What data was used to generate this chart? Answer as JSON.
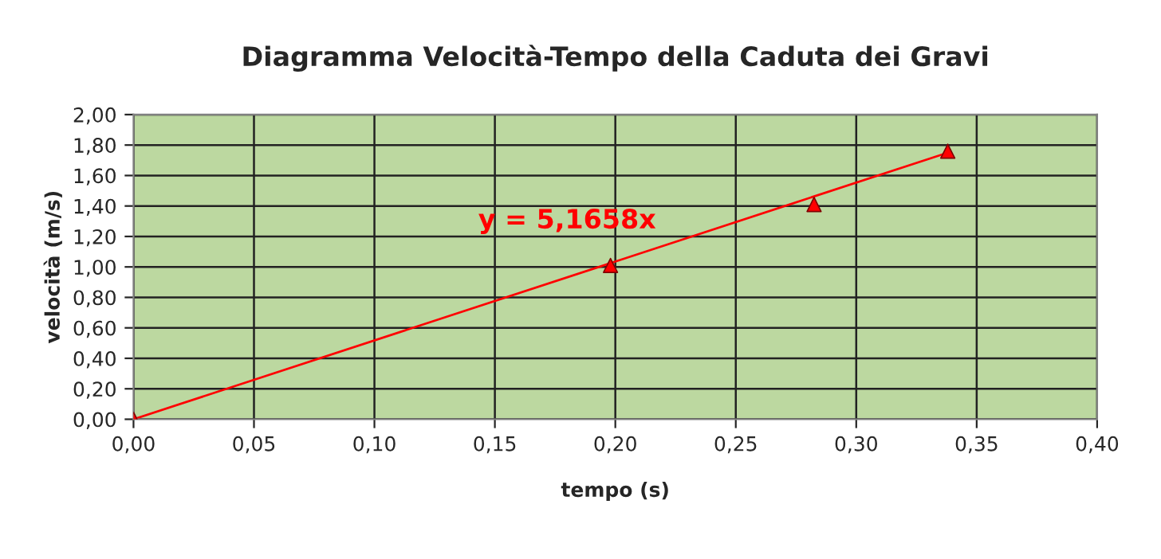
{
  "chart_data": {
    "type": "scatter",
    "title": "Diagramma Velocità-Tempo della Caduta dei Gravi",
    "xlabel": "tempo (s)",
    "ylabel": "velocità (m/s)",
    "series": [
      {
        "color": "#ff0000",
        "marker": "triangle",
        "x": [
          0.0,
          0.198,
          0.2825,
          0.338
        ],
        "values": [
          0.0,
          1.01,
          1.41,
          1.76
        ]
      },
      {
        "type": "line",
        "color": "#ff0000",
        "marker": "none",
        "x": [
          0.0,
          0.338
        ],
        "values": [
          0.0,
          1.75
        ]
      }
    ],
    "annotations": [
      "y = 5,1658x"
    ],
    "xlim": [
      0,
      0.4
    ],
    "xticks": [
      {
        "value": 0,
        "label": "0,00"
      },
      {
        "value": 0.05,
        "label": "0,05"
      },
      {
        "value": 0.1,
        "label": "0,10"
      },
      {
        "value": 0.15,
        "label": "0,15"
      },
      {
        "value": 0.2,
        "label": "0,20"
      },
      {
        "value": 0.25,
        "label": "0,25"
      },
      {
        "value": 0.3,
        "label": "0,30"
      },
      {
        "value": 0.35,
        "label": "0,35"
      },
      {
        "value": 0.4,
        "label": "0,40"
      }
    ],
    "ylim": [
      0,
      2
    ],
    "yticks": [
      {
        "value": 0,
        "label": "0,00"
      },
      {
        "value": 0.2,
        "label": "0,20"
      },
      {
        "value": 0.4,
        "label": "0,40"
      },
      {
        "value": 0.6,
        "label": "0,60"
      },
      {
        "value": 0.8,
        "label": "0,80"
      },
      {
        "value": 1.0,
        "label": "1,00"
      },
      {
        "value": 1.2,
        "label": "1,20"
      },
      {
        "value": 1.4,
        "label": "1,40"
      },
      {
        "value": 1.6,
        "label": "1,60"
      },
      {
        "value": 1.8,
        "label": "1,80"
      },
      {
        "value": 2.0,
        "label": "2,00"
      }
    ],
    "grid": true,
    "legend": false
  }
}
